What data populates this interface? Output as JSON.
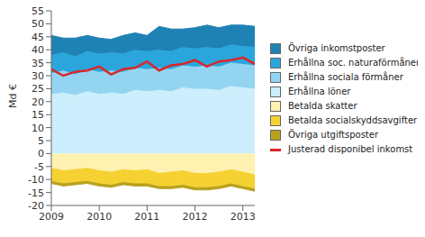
{
  "chart_data": {
    "type": "area",
    "stacked": true,
    "legend": "right",
    "grid": false,
    "y_label": "Md €",
    "x": [
      2009,
      2009.25,
      2009.5,
      2009.75,
      2010,
      2010.25,
      2010.5,
      2010.75,
      2011,
      2011.25,
      2011.5,
      2011.75,
      2012,
      2012.25,
      2012.5,
      2012.75,
      2013,
      2013.25
    ],
    "xlim": [
      2009,
      2013.25
    ],
    "xticks": [
      2009,
      2010,
      2011,
      2012,
      2013
    ],
    "ylim": [
      -20,
      55
    ],
    "yticks": [
      -20,
      -15,
      -10,
      -5,
      0,
      5,
      10,
      15,
      20,
      25,
      30,
      35,
      40,
      45,
      50,
      55
    ],
    "series": [
      {
        "name": "Övriga inkomstposter",
        "type": "area",
        "color": "#1f82b4",
        "values": [
          7.5,
          5.5,
          7,
          6,
          6,
          5,
          7,
          6.5,
          6,
          9,
          8.5,
          7,
          8,
          8.5,
          8,
          7.5,
          8,
          8
        ]
      },
      {
        "name": "Erhållna soc. naturaförmåner",
        "type": "area",
        "color": "#2ba6dc",
        "values": [
          7,
          7,
          7,
          7,
          7,
          7,
          7,
          7,
          7,
          7,
          7,
          7,
          7,
          7,
          7,
          7,
          7,
          7
        ]
      },
      {
        "name": "Erhållna sociala förmåner",
        "type": "area",
        "color": "#93d5f1",
        "values": [
          8,
          8.5,
          8,
          8.5,
          8.5,
          8.5,
          8.5,
          8.5,
          8.5,
          8.5,
          8.5,
          8.5,
          8.5,
          9,
          9,
          9,
          9,
          9
        ]
      },
      {
        "name": "Erhållna löner",
        "type": "area",
        "color": "#cdeefc",
        "values": [
          23,
          23.5,
          22.5,
          24,
          23,
          23.5,
          23,
          24.5,
          24,
          24.5,
          24,
          25.5,
          25,
          25,
          24.5,
          26,
          25.5,
          25
        ]
      },
      {
        "name": "Betalda skatter",
        "type": "area",
        "color": "#fff1b0",
        "values": [
          -5.5,
          -6.5,
          -6,
          -5.5,
          -6.5,
          -7,
          -6,
          -6.5,
          -6,
          -7.5,
          -7,
          -6.5,
          -7.5,
          -7.5,
          -7,
          -6,
          -7,
          -8
        ]
      },
      {
        "name": "Betalda socialskyddsavgifter",
        "type": "area",
        "color": "#f5d232",
        "values": [
          -5,
          -5,
          -5,
          -5,
          -5,
          -5,
          -5,
          -5,
          -5.5,
          -5,
          -5.5,
          -5.5,
          -5.5,
          -5.5,
          -5.5,
          -5.5,
          -5.5,
          -5.5
        ]
      },
      {
        "name": "Övriga utgiftsposter",
        "type": "area",
        "color": "#b9a11f",
        "values": [
          -1,
          -1,
          -1,
          -1,
          -1,
          -1,
          -1,
          -1,
          -1,
          -1,
          -1,
          -1,
          -1,
          -1,
          -1,
          -1,
          -1,
          -1
        ]
      },
      {
        "name": "Justerad disponibel inkomst",
        "type": "line",
        "color": "#d9262b",
        "values": [
          32.5,
          30,
          31.5,
          32,
          33.5,
          30.5,
          32.5,
          33,
          35.5,
          32,
          34,
          34.5,
          36,
          33.5,
          35.5,
          36,
          37,
          34.5
        ]
      }
    ]
  }
}
